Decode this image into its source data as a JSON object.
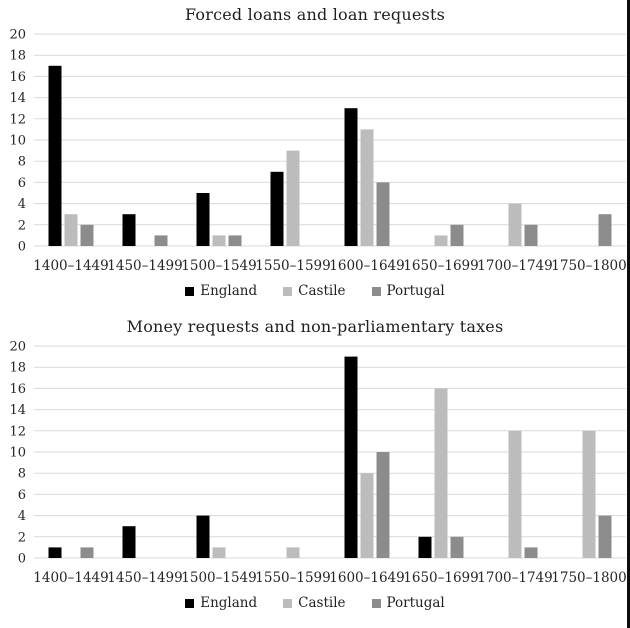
{
  "page": {
    "background": "#ffffff",
    "right_edge_border_color": "#0d0d0d",
    "text_color": "#262626",
    "gridline_color": "#d9d9d9"
  },
  "chart_data": [
    {
      "type": "bar",
      "title": "Forced loans and loan requests",
      "categories": [
        "1400–1449",
        "1450–1499",
        "1500–1549",
        "1550–1599",
        "1600–1649",
        "1650–1699",
        "1700–1749",
        "1750–1800"
      ],
      "series": [
        {
          "name": "England",
          "color": "#000000",
          "values": [
            17,
            3,
            5,
            7,
            13,
            0,
            0,
            0
          ]
        },
        {
          "name": "Castile",
          "color": "#bcbcbc",
          "values": [
            3,
            0,
            1,
            9,
            11,
            1,
            4,
            0
          ]
        },
        {
          "name": "Portugal",
          "color": "#8c8c8c",
          "values": [
            2,
            1,
            1,
            0,
            6,
            2,
            2,
            3
          ]
        }
      ],
      "xlabel": "",
      "ylabel": "",
      "ylim": [
        0,
        20
      ],
      "ytick_step": 2,
      "yticks": [
        0,
        2,
        4,
        6,
        8,
        10,
        12,
        14,
        16,
        18,
        20
      ],
      "grid": true,
      "legend_position": "bottom"
    },
    {
      "type": "bar",
      "title": "Money requests and non-parliamentary taxes",
      "categories": [
        "1400–1449",
        "1450–1499",
        "1500–1549",
        "1550–1599",
        "1600–1649",
        "1650–1699",
        "1700–1749",
        "1750–1800"
      ],
      "series": [
        {
          "name": "England",
          "color": "#000000",
          "values": [
            1,
            3,
            4,
            0,
            19,
            2,
            0,
            0
          ]
        },
        {
          "name": "Castile",
          "color": "#bcbcbc",
          "values": [
            0,
            0,
            1,
            1,
            8,
            16,
            12,
            12
          ]
        },
        {
          "name": "Portugal",
          "color": "#8c8c8c",
          "values": [
            1,
            0,
            0,
            0,
            10,
            2,
            1,
            4
          ]
        }
      ],
      "xlabel": "",
      "ylabel": "",
      "ylim": [
        0,
        20
      ],
      "ytick_step": 2,
      "yticks": [
        0,
        2,
        4,
        6,
        8,
        10,
        12,
        14,
        16,
        18,
        20
      ],
      "grid": true,
      "legend_position": "bottom"
    }
  ]
}
